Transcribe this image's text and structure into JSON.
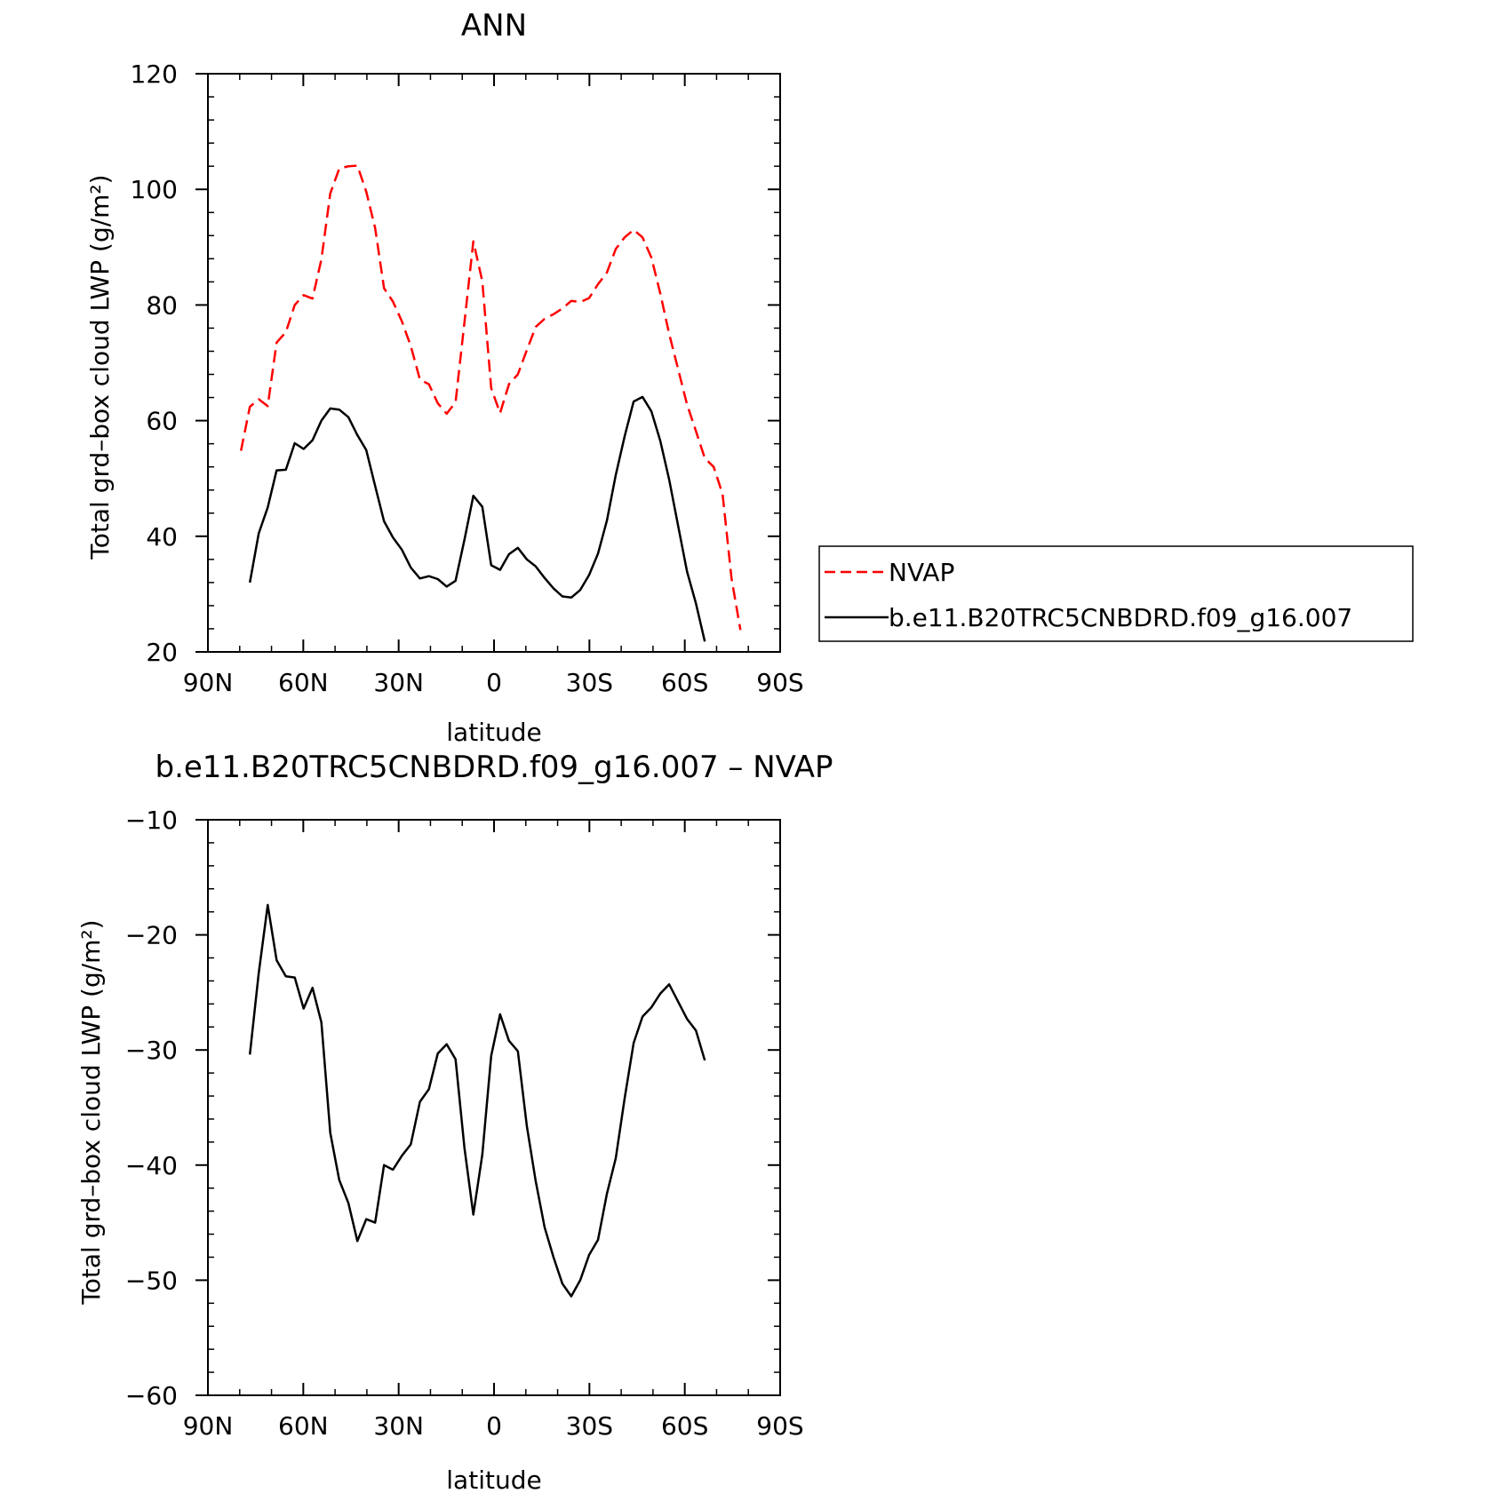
{
  "colors": {
    "nvap": "#ff0000",
    "model": "#000000",
    "axis": "#000000",
    "background": "#ffffff"
  },
  "chart_data": [
    {
      "type": "line",
      "title": "ANN",
      "xlabel": "latitude",
      "ylabel": "Total grd–box cloud LWP (g/m²)",
      "xlim": [
        90,
        -90
      ],
      "ylim": [
        20,
        120
      ],
      "xticks": [
        90,
        60,
        30,
        0,
        -30,
        -60,
        -90
      ],
      "xtick_labels": [
        "90N",
        "60N",
        "30N",
        "0",
        "30S",
        "60S",
        "90S"
      ],
      "yticks": [
        20,
        40,
        60,
        80,
        100,
        120
      ],
      "ytick_labels": [
        "20",
        "40",
        "60",
        "80",
        "100",
        "120"
      ],
      "grid": false,
      "legend_position": "right",
      "series": [
        {
          "name": "NVAP",
          "style": "dashed",
          "color": "#ff0000",
          "x": [
            79.6,
            76.8,
            74.0,
            71.2,
            68.4,
            65.5,
            62.7,
            59.9,
            57.1,
            54.3,
            51.5,
            48.7,
            45.8,
            43.0,
            40.2,
            37.4,
            34.6,
            31.8,
            29.0,
            26.2,
            23.3,
            20.5,
            17.7,
            14.9,
            12.1,
            9.3,
            6.5,
            3.7,
            0.9,
            -1.9,
            -4.7,
            -7.5,
            -10.3,
            -13.1,
            -15.9,
            -18.7,
            -21.5,
            -24.3,
            -27.1,
            -29.9,
            -32.7,
            -35.5,
            -38.3,
            -41.1,
            -43.9,
            -46.7,
            -49.5,
            -52.3,
            -55.1,
            -57.9,
            -60.7,
            -63.5,
            -66.3,
            -69.1,
            -71.9,
            -74.7,
            -77.5
          ],
          "y": [
            54.8,
            62.4,
            63.7,
            62.5,
            73.5,
            75.3,
            80.0,
            81.7,
            81.1,
            87.9,
            99.3,
            103.6,
            104.0,
            104.1,
            99.6,
            93.3,
            82.9,
            80.6,
            77.2,
            72.9,
            67.1,
            66.3,
            63.0,
            61.2,
            63.2,
            77.0,
            91.0,
            84.1,
            65.6,
            61.3,
            66.3,
            68.0,
            72.2,
            76.2,
            77.6,
            78.4,
            79.4,
            80.7,
            80.5,
            81.2,
            83.6,
            85.6,
            89.7,
            91.7,
            93.0,
            91.7,
            88.2,
            82.0,
            75.0,
            68.9,
            62.8,
            58.2,
            53.5,
            52.0,
            47.3,
            32.7,
            23.8
          ]
        },
        {
          "name": "b.e11.B20TRC5CNBDRD.f09_g16.007",
          "style": "solid",
          "color": "#000000",
          "x": [
            76.8,
            74.0,
            71.2,
            68.4,
            65.5,
            62.7,
            59.9,
            57.1,
            54.3,
            51.5,
            48.7,
            45.8,
            43.0,
            40.2,
            37.4,
            34.6,
            31.8,
            29.0,
            26.2,
            23.3,
            20.5,
            17.7,
            14.9,
            12.1,
            9.3,
            6.5,
            3.7,
            0.9,
            -1.9,
            -4.7,
            -7.5,
            -10.3,
            -13.1,
            -15.9,
            -18.7,
            -21.5,
            -24.3,
            -27.1,
            -29.9,
            -32.7,
            -35.5,
            -38.3,
            -41.1,
            -43.9,
            -46.7,
            -49.5,
            -52.3,
            -55.1,
            -57.9,
            -60.7,
            -63.5,
            -66.3
          ],
          "y": [
            32.0,
            40.5,
            45.0,
            51.4,
            51.5,
            56.1,
            55.1,
            56.6,
            60.0,
            62.1,
            61.9,
            60.6,
            57.5,
            54.9,
            48.7,
            42.6,
            39.8,
            37.7,
            34.6,
            32.7,
            33.1,
            32.6,
            31.3,
            32.3,
            39.4,
            47.0,
            45.1,
            35.0,
            34.2,
            36.9,
            38.0,
            36.0,
            34.8,
            32.8,
            31.0,
            29.6,
            29.4,
            30.7,
            33.3,
            37.0,
            42.7,
            50.6,
            57.3,
            63.3,
            64.1,
            61.6,
            56.5,
            49.8,
            41.8,
            33.9,
            28.4,
            21.8
          ]
        }
      ]
    },
    {
      "type": "line",
      "title": "b.e11.B20TRC5CNBDRD.f09_g16.007 – NVAP",
      "xlabel": "latitude",
      "ylabel": "Total grd–box cloud LWP (g/m²)",
      "xlim": [
        90,
        -90
      ],
      "ylim": [
        -60,
        -10
      ],
      "xticks": [
        90,
        60,
        30,
        0,
        -30,
        -60,
        -90
      ],
      "xtick_labels": [
        "90N",
        "60N",
        "30N",
        "0",
        "30S",
        "60S",
        "90S"
      ],
      "yticks": [
        -60,
        -50,
        -40,
        -30,
        -20,
        -10
      ],
      "ytick_labels": [
        "−60",
        "−50",
        "−40",
        "−30",
        "−20",
        "−10"
      ],
      "grid": false,
      "series": [
        {
          "style": "solid",
          "color": "#000000",
          "x": [
            76.8,
            74.0,
            71.2,
            68.4,
            65.5,
            62.7,
            59.9,
            57.1,
            54.3,
            51.5,
            48.7,
            45.8,
            43.0,
            40.2,
            37.4,
            34.6,
            31.8,
            29.0,
            26.2,
            23.3,
            20.5,
            17.7,
            14.9,
            12.1,
            9.3,
            6.5,
            3.7,
            0.9,
            -1.9,
            -4.7,
            -7.5,
            -10.3,
            -13.1,
            -15.9,
            -18.7,
            -21.5,
            -24.3,
            -27.1,
            -29.9,
            -32.7,
            -35.5,
            -38.3,
            -41.1,
            -43.9,
            -46.7,
            -49.5,
            -52.3,
            -55.1,
            -57.9,
            -60.7,
            -63.5,
            -66.3
          ],
          "y": [
            -30.4,
            -23.3,
            -17.4,
            -22.2,
            -23.6,
            -23.7,
            -26.4,
            -24.6,
            -27.6,
            -37.2,
            -41.3,
            -43.3,
            -46.6,
            -44.7,
            -45.0,
            -40.0,
            -40.4,
            -39.2,
            -38.2,
            -34.5,
            -33.4,
            -30.3,
            -29.5,
            -30.8,
            -38.5,
            -44.3,
            -39.1,
            -30.5,
            -26.9,
            -29.2,
            -30.1,
            -36.6,
            -41.4,
            -45.4,
            -48.0,
            -50.3,
            -51.4,
            -50.0,
            -47.8,
            -46.5,
            -42.5,
            -39.4,
            -34.2,
            -29.4,
            -27.1,
            -26.3,
            -25.1,
            -24.3,
            -25.8,
            -27.3,
            -28.3,
            -30.9
          ]
        }
      ]
    }
  ]
}
